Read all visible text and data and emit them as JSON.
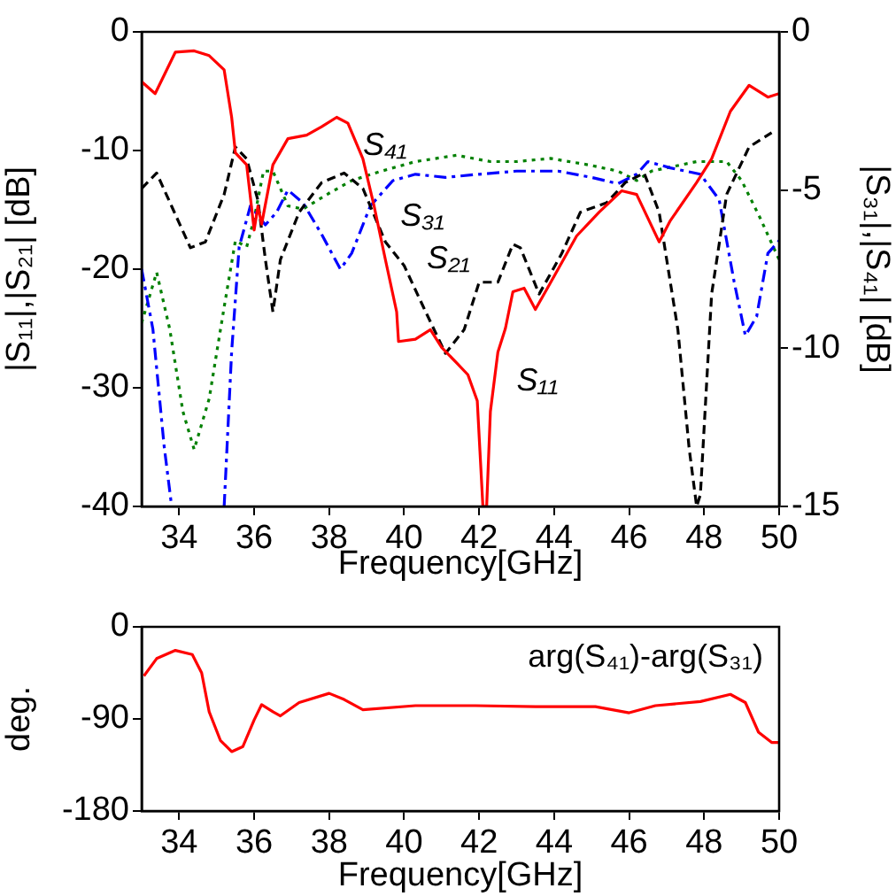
{
  "chart_data": [
    {
      "type": "line",
      "xlabel": "Frequency[GHz]",
      "ylabel": "|S₁₁|,|S₂₁| [dB]",
      "y2label": "|S₃₁|,|S₄₁| [dB]",
      "xlim": [
        33,
        50
      ],
      "xticks": [
        34,
        36,
        38,
        40,
        42,
        44,
        46,
        48,
        50
      ],
      "ylim": [
        -40,
        0
      ],
      "yticks": [
        -40,
        -30,
        -20,
        -10,
        0
      ],
      "y2lim": [
        -15,
        0
      ],
      "y2ticks": [
        -15,
        -10,
        -5,
        0
      ],
      "grid": false,
      "legend": false,
      "marker": "none",
      "series": [
        {
          "name": "S₁₁",
          "color": "#ff0000",
          "line_style": "solid",
          "x": [
            33,
            33.36,
            33.9,
            34.4,
            34.8,
            35.2,
            35.4,
            35.5,
            35.8,
            36.0,
            36.1,
            36.2,
            36.5,
            36.9,
            37.4,
            37.8,
            38.2,
            38.5,
            38.9,
            39.2,
            39.5,
            39.8,
            39.85,
            40.3,
            40.7,
            41.0,
            41.4,
            41.7,
            41.95,
            42.1,
            42.2,
            42.3,
            42.5,
            42.7,
            42.9,
            43.2,
            43.5,
            44.0,
            44.6,
            45.2,
            45.8,
            46.2,
            46.5,
            46.8,
            47.1,
            47.8,
            48.2,
            48.7,
            49.2,
            49.7,
            50
          ],
          "values": [
            -4.2,
            -5.2,
            -1.7,
            -1.6,
            -2.0,
            -3.2,
            -7.2,
            -10.2,
            -11.2,
            -16.7,
            -14.7,
            -16.2,
            -11.2,
            -9.0,
            -8.7,
            -8.0,
            -7.2,
            -7.7,
            -10.7,
            -14.7,
            -19.2,
            -23.6,
            -26.1,
            -25.9,
            -25.1,
            -26.6,
            -27.9,
            -28.9,
            -31.1,
            -40,
            -40,
            -32,
            -27,
            -25,
            -21.9,
            -21.6,
            -23.4,
            -20.6,
            -17.2,
            -15.2,
            -13.4,
            -13.7,
            -15.7,
            -17.7,
            -15.9,
            -12.7,
            -10.7,
            -6.7,
            -4.5,
            -5.5,
            -5.2
          ]
        },
        {
          "name": "S₂₁",
          "color": "#000000",
          "line_style": "dashed",
          "x": [
            33,
            33.4,
            33.8,
            34.3,
            34.7,
            35.2,
            35.5,
            35.8,
            36.1,
            36.3,
            36.5,
            36.7,
            37.2,
            37.8,
            38.4,
            38.9,
            39.5,
            40.0,
            40.5,
            41.1,
            41.6,
            42.0,
            42.5,
            42.9,
            43.1,
            43.6,
            44.2,
            44.7,
            45.4,
            45.9,
            46.4,
            46.8,
            47.3,
            47.6,
            47.8,
            47.9,
            48.2,
            48.6,
            49.2,
            49.8
          ],
          "values": [
            -13.2,
            -11.9,
            -14.7,
            -18.2,
            -17.7,
            -13.7,
            -9.7,
            -10.7,
            -14.2,
            -19.2,
            -23.6,
            -19.2,
            -15.2,
            -12.7,
            -11.9,
            -13.2,
            -17.7,
            -19.7,
            -23.1,
            -27.1,
            -25.1,
            -21.1,
            -21.1,
            -17.9,
            -18.2,
            -22.1,
            -18.7,
            -15.2,
            -14.4,
            -12.7,
            -11.9,
            -15.2,
            -25.1,
            -35.1,
            -40,
            -39,
            -22.1,
            -13.7,
            -9.7,
            -8.5
          ]
        },
        {
          "name": "S₃₁",
          "color": "#0000ff",
          "line_style": "dashdot",
          "axis": "y2",
          "x": [
            33,
            33.3,
            33.6,
            33.8,
            34.5,
            35.2,
            35.4,
            35.6,
            35.9,
            36.3,
            36.6,
            36.9,
            37.3,
            37.8,
            38.3,
            38.6,
            39.1,
            39.7,
            40.3,
            41.1,
            42.0,
            43.0,
            44.1,
            45.0,
            45.7,
            46.2,
            46.5,
            47.1,
            47.9,
            48.4,
            48.8,
            49.1,
            49.4,
            49.7,
            50
          ],
          "values": [
            -7.5,
            -9.4,
            -13.1,
            -15,
            null,
            -15,
            -10.1,
            -6.8,
            -5.5,
            -6.1,
            -5.7,
            -5.0,
            -5.4,
            -6.4,
            -7.5,
            -7.0,
            -5.5,
            -4.7,
            -4.5,
            -4.6,
            -4.5,
            -4.4,
            -4.4,
            -4.6,
            -4.8,
            -4.5,
            -4.1,
            -4.3,
            -4.5,
            -5.3,
            -7.9,
            -9.6,
            -9.0,
            -7.0,
            -6.6
          ]
        },
        {
          "name": "S₄₁",
          "color": "#008000",
          "line_style": "dotted",
          "axis": "y2",
          "x": [
            33,
            33.4,
            33.75,
            34.1,
            34.4,
            34.8,
            35.2,
            35.5,
            35.8,
            36.0,
            36.25,
            36.5,
            36.9,
            37.3,
            38.0,
            38.6,
            39.4,
            40.3,
            41.4,
            42.3,
            43.0,
            43.9,
            44.9,
            45.7,
            46.2,
            46.6,
            47.8,
            48.6,
            49.0,
            49.5,
            50
          ],
          "values": [
            -9.2,
            -7.6,
            -9.4,
            -12.0,
            -13.2,
            -11.6,
            -8.7,
            -6.6,
            -6.8,
            -5.9,
            -4.4,
            -4.4,
            -5.5,
            -5.6,
            -5.1,
            -4.7,
            -4.4,
            -4.1,
            -3.9,
            -4.1,
            -4.1,
            -4.0,
            -4.2,
            -4.4,
            -4.7,
            -4.4,
            -4.1,
            -4.1,
            -4.7,
            -5.9,
            -7.2
          ]
        }
      ]
    },
    {
      "type": "line",
      "xlabel": "Frequency[GHz]",
      "ylabel": "deg.",
      "xlim": [
        33,
        50
      ],
      "xticks": [
        34,
        36,
        38,
        40,
        42,
        44,
        46,
        48,
        50
      ],
      "ylim": [
        -180,
        0
      ],
      "yticks": [
        -180,
        -90,
        0
      ],
      "grid": false,
      "legend": false,
      "marker": "none",
      "series": [
        {
          "name": "arg(S₄₁)-arg(S₃₁)",
          "color": "#ff0000",
          "line_style": "solid",
          "x": [
            33.06,
            33.4,
            33.9,
            34.35,
            34.6,
            34.8,
            35.1,
            35.4,
            35.7,
            36.0,
            36.2,
            36.5,
            36.7,
            37.2,
            38.0,
            38.4,
            38.9,
            40.3,
            41.9,
            43.5,
            45.1,
            46.0,
            46.7,
            47.9,
            48.7,
            49.1,
            49.45,
            49.8,
            50
          ],
          "values": [
            -48,
            -31,
            -23,
            -27,
            -45,
            -83,
            -111,
            -122,
            -117,
            -91,
            -76,
            -83,
            -87,
            -74,
            -65,
            -71,
            -81,
            -77,
            -77,
            -78,
            -78,
            -84,
            -77,
            -73,
            -66,
            -74,
            -103,
            -113,
            -113
          ]
        }
      ]
    }
  ]
}
